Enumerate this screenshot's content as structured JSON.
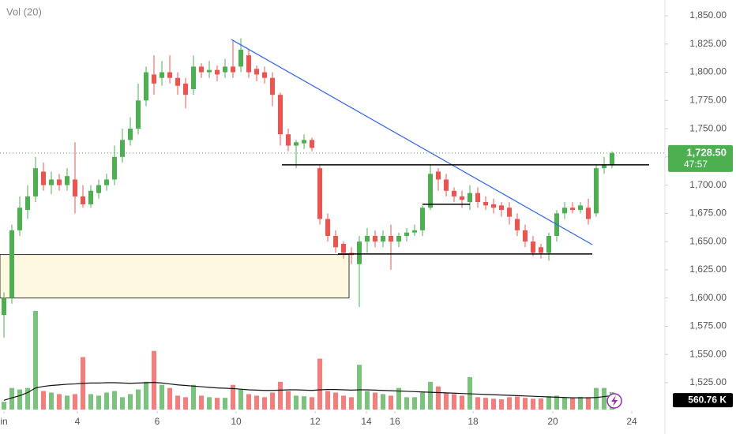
{
  "chart_data": {
    "type": "candlestick",
    "volume_title": "Vol (20)",
    "up_color": "#4caf50",
    "down_color": "#ef5350",
    "xlim": [
      -0.5,
      83.5
    ],
    "xticks": [
      {
        "value": 0,
        "label": "in"
      },
      {
        "value": 9.3,
        "label": "4"
      },
      {
        "value": 19.4,
        "label": "6"
      },
      {
        "value": 29.4,
        "label": "10"
      },
      {
        "value": 39.4,
        "label": "12"
      },
      {
        "value": 45.9,
        "label": "14"
      },
      {
        "value": 49.5,
        "label": "16"
      },
      {
        "value": 59.4,
        "label": "18"
      },
      {
        "value": 69.5,
        "label": "20"
      },
      {
        "value": 79.5,
        "label": "24"
      }
    ],
    "ylim": [
      1500.5,
      1864
    ],
    "yticks": [
      {
        "value": 1525,
        "label": "1,525.00"
      },
      {
        "value": 1550,
        "label": "1,550.00"
      },
      {
        "value": 1575,
        "label": "1,575.00"
      },
      {
        "value": 1600,
        "label": "1,600.00"
      },
      {
        "value": 1625,
        "label": "1,625.00"
      },
      {
        "value": 1650,
        "label": "1,650.00"
      },
      {
        "value": 1675,
        "label": "1,675.00"
      },
      {
        "value": 1700,
        "label": "1,700.00"
      },
      {
        "value": 1725,
        "label": "1,725.00"
      },
      {
        "value": 1750,
        "label": "1,750.00"
      },
      {
        "value": 1775,
        "label": "1,775.00"
      },
      {
        "value": 1800,
        "label": "1,800.00"
      },
      {
        "value": 1825,
        "label": "1,825.00"
      },
      {
        "value": 1850,
        "label": "1,850.00"
      }
    ],
    "open": [
      1585,
      1600,
      1660,
      1678,
      1690,
      1712,
      1700,
      1705,
      1700,
      1705,
      1690,
      1683,
      1693,
      1700,
      1705,
      1725,
      1740,
      1750,
      1775,
      1798,
      1795,
      1800,
      1795,
      1790,
      1785,
      1805,
      1800,
      1802,
      1800,
      1805,
      1805,
      1815,
      1803,
      1800,
      1795,
      1780,
      1745,
      1735,
      1737,
      1740,
      1715,
      1670,
      1655,
      1648,
      1640,
      1630,
      1650,
      1655,
      1650,
      1655,
      1650,
      1655,
      1658,
      1660,
      1680,
      1712,
      1705,
      1695,
      1690,
      1685,
      1693,
      1685,
      1683,
      1682,
      1680,
      1670,
      1660,
      1650,
      1645,
      1640,
      1655,
      1675,
      1680,
      1678,
      1680,
      1675,
      1715,
      1718
    ],
    "high": [
      1605,
      1665,
      1690,
      1700,
      1725,
      1720,
      1712,
      1710,
      1715,
      1738,
      1700,
      1700,
      1705,
      1710,
      1735,
      1750,
      1760,
      1790,
      1805,
      1815,
      1810,
      1815,
      1800,
      1795,
      1815,
      1808,
      1810,
      1806,
      1812,
      1828,
      1830,
      1820,
      1806,
      1805,
      1800,
      1782,
      1750,
      1740,
      1745,
      1742,
      1718,
      1675,
      1660,
      1650,
      1645,
      1655,
      1662,
      1660,
      1660,
      1665,
      1658,
      1662,
      1665,
      1682,
      1718,
      1715,
      1710,
      1698,
      1695,
      1700,
      1698,
      1690,
      1688,
      1685,
      1685,
      1675,
      1665,
      1655,
      1648,
      1658,
      1678,
      1685,
      1685,
      1685,
      1688,
      1718,
      1725,
      1730
    ],
    "low": [
      1565,
      1595,
      1655,
      1670,
      1685,
      1695,
      1692,
      1695,
      1695,
      1675,
      1680,
      1680,
      1688,
      1695,
      1700,
      1720,
      1735,
      1745,
      1770,
      1780,
      1788,
      1790,
      1780,
      1768,
      1780,
      1795,
      1795,
      1792,
      1795,
      1795,
      1800,
      1795,
      1792,
      1790,
      1770,
      1735,
      1730,
      1715,
      1732,
      1730,
      1665,
      1650,
      1640,
      1635,
      1630,
      1592,
      1640,
      1645,
      1645,
      1625,
      1645,
      1650,
      1655,
      1655,
      1678,
      1695,
      1690,
      1685,
      1680,
      1678,
      1680,
      1678,
      1675,
      1672,
      1665,
      1655,
      1645,
      1637,
      1635,
      1633,
      1650,
      1670,
      1675,
      1675,
      1665,
      1672,
      1710,
      1715
    ],
    "close": [
      1600,
      1660,
      1680,
      1690,
      1715,
      1700,
      1705,
      1700,
      1708,
      1690,
      1683,
      1695,
      1700,
      1705,
      1725,
      1740,
      1750,
      1775,
      1800,
      1790,
      1800,
      1795,
      1788,
      1780,
      1805,
      1800,
      1802,
      1798,
      1805,
      1800,
      1820,
      1800,
      1798,
      1795,
      1780,
      1745,
      1735,
      1738,
      1740,
      1733,
      1670,
      1655,
      1645,
      1640,
      1638,
      1650,
      1655,
      1650,
      1655,
      1650,
      1655,
      1658,
      1660,
      1680,
      1710,
      1705,
      1695,
      1690,
      1687,
      1693,
      1685,
      1682,
      1680,
      1678,
      1672,
      1660,
      1650,
      1640,
      1640,
      1655,
      1675,
      1680,
      1678,
      1682,
      1670,
      1715,
      1718,
      1728.5
    ],
    "volume": [
      250,
      700,
      650,
      700,
      3200,
      600,
      550,
      500,
      450,
      500,
      1700,
      500,
      450,
      550,
      600,
      400,
      500,
      650,
      900,
      1900,
      800,
      700,
      450,
      400,
      800,
      450,
      400,
      380,
      380,
      800,
      650,
      500,
      450,
      400,
      550,
      900,
      600,
      450,
      430,
      400,
      1650,
      600,
      550,
      450,
      400,
      1450,
      600,
      550,
      500,
      450,
      700,
      400,
      400,
      550,
      900,
      750,
      550,
      500,
      450,
      1050,
      400,
      380,
      350,
      330,
      400,
      420,
      380,
      350,
      360,
      430,
      450,
      400,
      380,
      410,
      400,
      700,
      700,
      560.76
    ],
    "volume_ma": [
      300,
      380,
      450,
      550,
      700,
      750,
      780,
      800,
      820,
      830,
      850,
      860,
      860,
      870,
      870,
      860,
      850,
      860,
      870,
      880,
      860,
      830,
      800,
      780,
      760,
      740,
      720,
      700,
      690,
      680,
      660,
      640,
      630,
      620,
      620,
      630,
      640,
      640,
      630,
      620,
      640,
      650,
      650,
      640,
      630,
      640,
      640,
      630,
      620,
      610,
      600,
      590,
      580,
      570,
      560,
      550,
      540,
      530,
      520,
      510,
      500,
      490,
      480,
      470,
      460,
      450,
      440,
      430,
      420,
      410,
      400,
      390,
      380,
      380,
      380,
      390,
      420,
      450
    ],
    "vol_ylim": [
      0,
      3300
    ],
    "last_price": {
      "value": 1728.5,
      "label": "1,728.50"
    },
    "countdown": "47:57",
    "last_volume": {
      "value": 560.76,
      "label": "560.76 K"
    },
    "lines": [
      {
        "x": [
          28.8,
          74.5
        ],
        "y": [
          1829,
          1647.3
        ],
        "color": "#2962ff"
      },
      {
        "x": [
          35.2,
          81.7
        ],
        "y": [
          1718,
          1718
        ],
        "color": "#000000"
      },
      {
        "x": [
          42.3,
          74.5
        ],
        "y": [
          1639,
          1639
        ],
        "color": "#000000"
      },
      {
        "x": [
          53,
          59
        ],
        "y": [
          1683,
          1683
        ],
        "color": "#000000"
      }
    ],
    "zone": {
      "x": [
        -0.5,
        43.7
      ],
      "y": [
        1600,
        1638.5
      ],
      "color": "#fff8e1"
    }
  }
}
